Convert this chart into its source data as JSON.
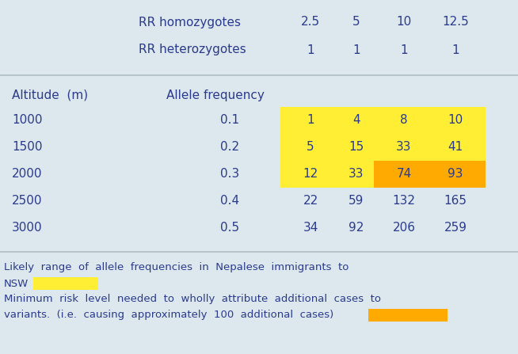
{
  "bg_color": "#dde8ee",
  "text_color": "#2b3a8c",
  "yellow_light": "#ffee33",
  "yellow_dark": "#ffaa00",
  "rr_homo_label": "RR homozygotes",
  "rr_hetero_label": "RR heterozygotes",
  "rr_homo_values": [
    "2.5",
    "5",
    "10",
    "12.5"
  ],
  "rr_hetero_values": [
    "1",
    "1",
    "1",
    "1"
  ],
  "rows": [
    {
      "altitude": "1000",
      "allele_freq": "0.1",
      "values": [
        "1",
        "4",
        "8",
        "10"
      ]
    },
    {
      "altitude": "1500",
      "allele_freq": "0.2",
      "values": [
        "5",
        "15",
        "33",
        "41"
      ]
    },
    {
      "altitude": "2000",
      "allele_freq": "0.3",
      "values": [
        "12",
        "33",
        "74",
        "93"
      ]
    },
    {
      "altitude": "2500",
      "allele_freq": "0.4",
      "values": [
        "22",
        "59",
        "132",
        "165"
      ]
    },
    {
      "altitude": "3000",
      "allele_freq": "0.5",
      "values": [
        "34",
        "92",
        "206",
        "259"
      ]
    }
  ],
  "font_size": 11,
  "footer_font_size": 9.5,
  "sep_color": "#b0bec5"
}
